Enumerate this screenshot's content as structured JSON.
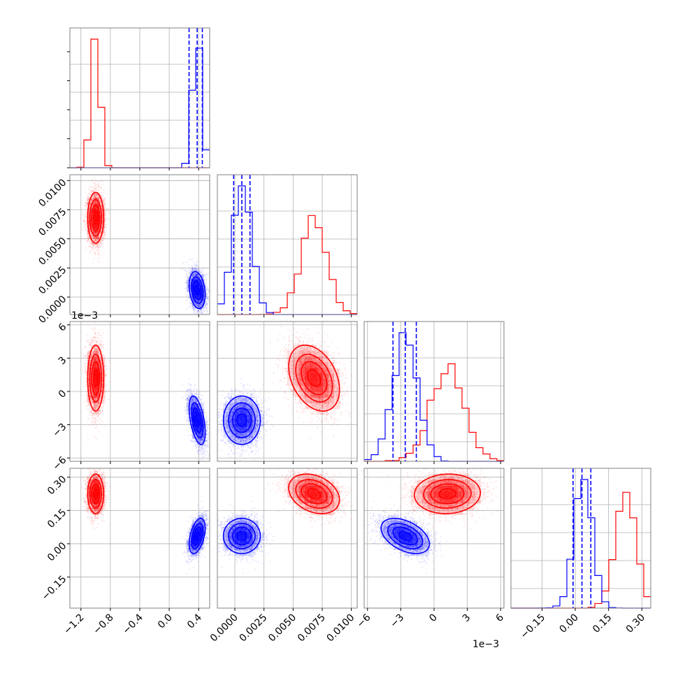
{
  "chart_data": {
    "type": "corner",
    "colors": {
      "series_a": "#ff0000",
      "series_b": "#0000ff",
      "grid": "#b0b0b0",
      "frame": "#808080"
    },
    "series": [
      {
        "color": "#ff0000",
        "means": [
          -1.0,
          0.0068,
          0.0012,
          0.225
        ],
        "stds": [
          0.055,
          0.0011,
          0.0015,
          0.045
        ],
        "corr": [
          [
            1,
            0,
            0,
            0
          ],
          [
            0,
            1,
            -0.35,
            -0.3
          ],
          [
            0,
            -0.35,
            1,
            0.05
          ],
          [
            0,
            -0.3,
            0.05,
            1
          ]
        ]
      },
      {
        "color": "#0000ff",
        "means": [
          0.38,
          0.0006,
          -0.0026,
          0.035
        ],
        "stds": [
          0.055,
          0.0008,
          0.0011,
          0.04
        ],
        "corr": [
          [
            1,
            -0.25,
            -0.5,
            0.45
          ],
          [
            -0.25,
            1,
            0,
            0
          ],
          [
            -0.5,
            0,
            1,
            -0.45
          ],
          [
            0.45,
            0,
            -0.45,
            1
          ]
        ],
        "quantiles": [
          [
            0.27,
            0.38,
            0.45
          ],
          [
            -0.0001,
            0.0006,
            0.0013
          ],
          [
            -0.0037,
            -0.0026,
            -0.0016
          ],
          [
            -0.01,
            0.03,
            0.07
          ]
        ]
      }
    ],
    "params": [
      {
        "range": [
          -1.35,
          0.55
        ],
        "ticks": [
          -1.2,
          -0.8,
          -0.4,
          0.0,
          0.4
        ],
        "tick_labels": [
          "−1.2",
          "−0.8",
          "−0.4",
          "0.0",
          "0.4"
        ]
      },
      {
        "range": [
          -0.0015,
          0.0105
        ],
        "ticks": [
          0.0,
          0.0025,
          0.005,
          0.0075,
          0.01
        ],
        "tick_labels": [
          "0.0000",
          "0.0025",
          "0.0050",
          "0.0075",
          "0.0100"
        ]
      },
      {
        "range": [
          -0.0063,
          0.0063
        ],
        "ticks": [
          -0.006,
          -0.003,
          0,
          0.003,
          0.006
        ],
        "tick_labels": [
          "−6",
          "−3",
          "0",
          "3",
          "6"
        ],
        "offset_label": "1e−3"
      },
      {
        "range": [
          -0.29,
          0.34
        ],
        "ticks": [
          -0.15,
          0.0,
          0.15,
          0.3
        ],
        "tick_labels": [
          "−0.15",
          "0.00",
          "0.15",
          "0.30"
        ]
      }
    ]
  }
}
